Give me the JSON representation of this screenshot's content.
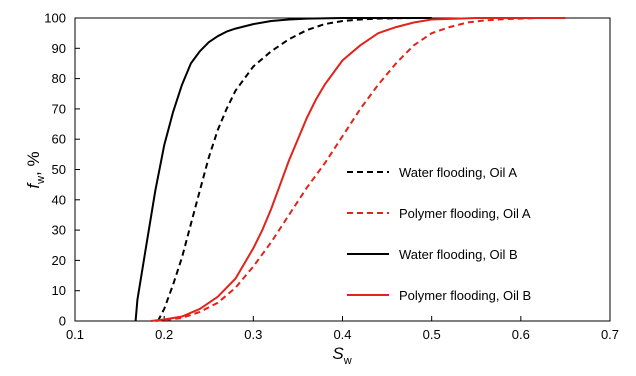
{
  "chart_data": {
    "type": "line",
    "xlabel": {
      "main": "S",
      "sub": "w"
    },
    "ylabel": {
      "main": "f",
      "sub": "w",
      "suffix": ", %"
    },
    "xlim": [
      0.1,
      0.7
    ],
    "ylim": [
      0,
      100
    ],
    "xticks": [
      "0.1",
      "0.2",
      "0.3",
      "0.4",
      "0.5",
      "0.6",
      "0.7"
    ],
    "yticks": [
      "0",
      "10",
      "20",
      "30",
      "40",
      "50",
      "60",
      "70",
      "80",
      "90",
      "100"
    ],
    "grid": false,
    "legend_position": "center-right",
    "series": [
      {
        "name": "Water flooding, Oil A",
        "color": "#000000",
        "dash": "dashed",
        "x": [
          0.193,
          0.2,
          0.21,
          0.22,
          0.23,
          0.24,
          0.25,
          0.26,
          0.27,
          0.28,
          0.29,
          0.3,
          0.32,
          0.34,
          0.36,
          0.38,
          0.4,
          0.42,
          0.44,
          0.46,
          0.48,
          0.5
        ],
        "y": [
          0,
          4,
          12,
          21,
          32,
          43,
          54,
          63,
          70,
          76,
          80,
          84,
          89,
          93,
          96,
          98,
          99,
          99.5,
          99.8,
          99.9,
          100,
          100
        ]
      },
      {
        "name": "Polymer flooding, Oil A",
        "color": "#e2231a",
        "dash": "dashed",
        "x": [
          0.19,
          0.2,
          0.22,
          0.24,
          0.26,
          0.28,
          0.3,
          0.32,
          0.34,
          0.36,
          0.38,
          0.4,
          0.42,
          0.44,
          0.46,
          0.48,
          0.5,
          0.52,
          0.54,
          0.56,
          0.58,
          0.6,
          0.62,
          0.65
        ],
        "y": [
          0,
          0.3,
          1,
          3,
          6,
          11,
          18,
          26,
          35,
          44,
          52,
          61,
          70,
          78,
          85,
          91,
          95,
          97,
          98.5,
          99.2,
          99.6,
          99.8,
          100,
          100
        ]
      },
      {
        "name": "Water flooding, Oil B",
        "color": "#000000",
        "dash": "solid",
        "x": [
          0.168,
          0.17,
          0.18,
          0.19,
          0.2,
          0.21,
          0.22,
          0.23,
          0.24,
          0.25,
          0.26,
          0.27,
          0.28,
          0.3,
          0.32,
          0.34,
          0.36,
          0.4,
          0.45,
          0.5
        ],
        "y": [
          0,
          7,
          25,
          43,
          58,
          69,
          78,
          85,
          89,
          92,
          94,
          95.5,
          96.5,
          98,
          99,
          99.5,
          99.8,
          100,
          100,
          100
        ]
      },
      {
        "name": "Polymer flooding, Oil B",
        "color": "#e2231a",
        "dash": "solid",
        "x": [
          0.185,
          0.2,
          0.22,
          0.24,
          0.26,
          0.28,
          0.3,
          0.31,
          0.32,
          0.33,
          0.34,
          0.35,
          0.36,
          0.37,
          0.38,
          0.39,
          0.4,
          0.42,
          0.44,
          0.46,
          0.48,
          0.5,
          0.55,
          0.6,
          0.65
        ],
        "y": [
          0,
          0.5,
          1.5,
          4,
          8,
          14,
          24,
          30,
          37,
          45,
          53,
          60,
          67,
          73,
          78,
          82,
          86,
          91,
          95,
          97,
          98.5,
          99.5,
          100,
          100,
          100
        ]
      }
    ]
  }
}
